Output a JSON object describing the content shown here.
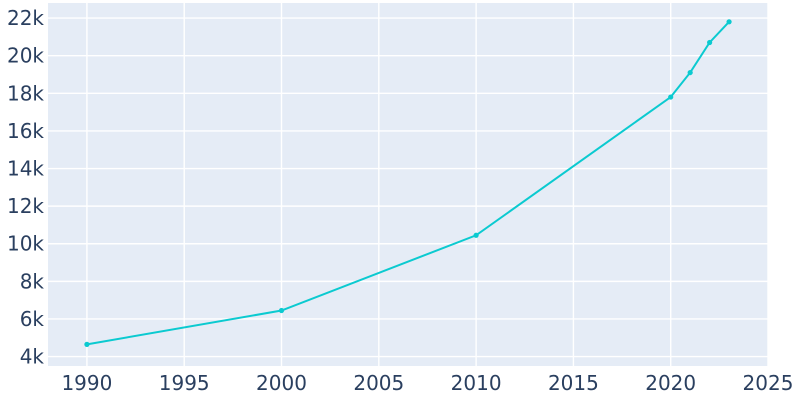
{
  "chart_data": {
    "type": "line",
    "title": "",
    "xlabel": "",
    "ylabel": "",
    "x": [
      1990,
      2000,
      2010,
      2020,
      2021,
      2022,
      2023
    ],
    "series": [
      {
        "values": [
          4650,
          6450,
          10450,
          17800,
          19100,
          20700,
          21800
        ]
      }
    ],
    "xlim": [
      1988,
      2025
    ],
    "ylim": [
      3500,
      22800
    ],
    "x_ticks": [
      1990,
      1995,
      2000,
      2005,
      2010,
      2015,
      2020,
      2025
    ],
    "x_tick_labels": [
      "1990",
      "1995",
      "2000",
      "2005",
      "2010",
      "2015",
      "2020",
      "2025"
    ],
    "y_ticks": [
      4000,
      6000,
      8000,
      10000,
      12000,
      14000,
      16000,
      18000,
      20000,
      22000
    ],
    "y_tick_labels": [
      "4k",
      "6k",
      "8k",
      "10k",
      "12k",
      "14k",
      "16k",
      "18k",
      "20k",
      "22k"
    ],
    "grid": true,
    "legend": "none",
    "colors": {
      "line": "#0bcad0",
      "plot_background": "#e5ecf6",
      "grid": "#ffffff",
      "tick_text": "#2a3f5f"
    }
  }
}
